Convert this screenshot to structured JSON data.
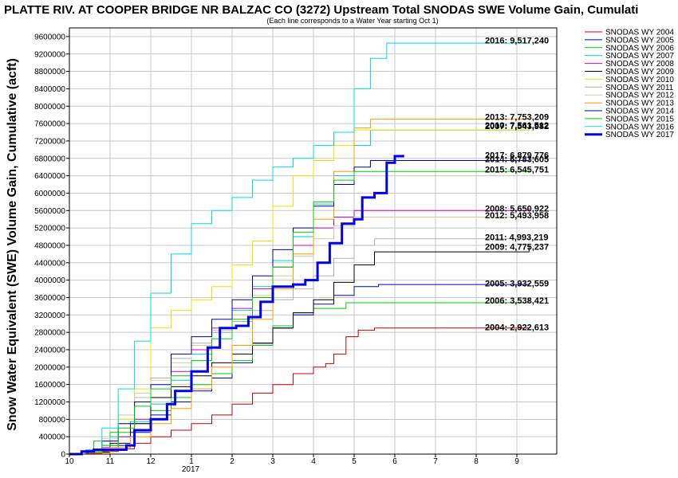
{
  "chart_data": {
    "type": "line",
    "title": "PLATTE RIV. AT COOPER BRIDGE NR BALZAC CO (3272) Upstream Total SNODAS SWE Volume Gain, Cumulati",
    "subtitle": "(Each line corresponds to a Water Year starting Oct 1)",
    "ylabel": "Snow Water Equivalent (SWE) Volume Gain, Cumulative (acft)",
    "xlabel": "",
    "x_tick_labels": [
      "10",
      "11",
      "12",
      "1",
      "2",
      "3",
      "4",
      "5",
      "6",
      "7",
      "8",
      "9"
    ],
    "x_year_label": "2017",
    "ylim": [
      0,
      9800000
    ],
    "y_ticks": [
      "0",
      "400000",
      "800000",
      "1200000",
      "1600000",
      "2000000",
      "2400000",
      "2800000",
      "3200000",
      "3600000",
      "4000000",
      "4400000",
      "4800000",
      "5200000",
      "5600000",
      "6000000",
      "6400000",
      "6800000",
      "7200000",
      "7600000",
      "8000000",
      "8400000",
      "8800000",
      "9200000",
      "9600000"
    ],
    "grid": true,
    "legend_position": "right",
    "series": [
      {
        "name": "SNODAS WY 2004",
        "color": "#cc0000",
        "width": 1,
        "end_label": "2004: 2,922,613",
        "points": [
          [
            0.0,
            0
          ],
          [
            0.4,
            20000
          ],
          [
            0.8,
            60000
          ],
          [
            1.2,
            120000
          ],
          [
            1.6,
            250000
          ],
          [
            2.0,
            400000
          ],
          [
            2.5,
            550000
          ],
          [
            3.0,
            700000
          ],
          [
            3.5,
            900000
          ],
          [
            4.0,
            1150000
          ],
          [
            4.5,
            1400000
          ],
          [
            5.0,
            1600000
          ],
          [
            5.5,
            1850000
          ],
          [
            6.0,
            2000000
          ],
          [
            6.3,
            2080000
          ],
          [
            6.5,
            2300000
          ],
          [
            6.8,
            2700000
          ],
          [
            7.1,
            2850000
          ],
          [
            7.5,
            2900000
          ],
          [
            11.3,
            2922613
          ]
        ]
      },
      {
        "name": "SNODAS WY 2005",
        "color": "#0000cc",
        "width": 1,
        "end_label": "2005: 3,932,559",
        "points": [
          [
            0.0,
            0
          ],
          [
            0.4,
            50000
          ],
          [
            1.0,
            200000
          ],
          [
            1.5,
            500000
          ],
          [
            2.0,
            900000
          ],
          [
            2.5,
            1200000
          ],
          [
            3.0,
            1450000
          ],
          [
            3.5,
            1750000
          ],
          [
            4.0,
            2100000
          ],
          [
            4.5,
            2550000
          ],
          [
            5.0,
            2900000
          ],
          [
            5.5,
            3200000
          ],
          [
            6.0,
            3450000
          ],
          [
            6.5,
            3650000
          ],
          [
            7.0,
            3850000
          ],
          [
            7.6,
            3900000
          ],
          [
            11.3,
            3932559
          ]
        ]
      },
      {
        "name": "SNODAS WY 2006",
        "color": "#00cc00",
        "width": 1,
        "end_label": "2006: 3,538,421",
        "points": [
          [
            0.0,
            0
          ],
          [
            0.3,
            50000
          ],
          [
            0.6,
            300000
          ],
          [
            1.0,
            500000
          ],
          [
            1.5,
            700000
          ],
          [
            2.0,
            1000000
          ],
          [
            2.5,
            1300000
          ],
          [
            3.0,
            1600000
          ],
          [
            3.5,
            1850000
          ],
          [
            4.0,
            2150000
          ],
          [
            4.5,
            2500000
          ],
          [
            5.0,
            2950000
          ],
          [
            5.5,
            3250000
          ],
          [
            6.0,
            3350000
          ],
          [
            6.8,
            3480000
          ],
          [
            11.3,
            3538421
          ]
        ]
      },
      {
        "name": "SNODAS WY 2007",
        "color": "#00cccc",
        "width": 1,
        "end_label": "2007: 7,543,982",
        "points": [
          [
            0.0,
            0
          ],
          [
            0.5,
            100000
          ],
          [
            1.0,
            400000
          ],
          [
            1.5,
            750000
          ],
          [
            2.0,
            1150000
          ],
          [
            2.5,
            1700000
          ],
          [
            3.0,
            2300000
          ],
          [
            3.5,
            2800000
          ],
          [
            4.0,
            3300000
          ],
          [
            4.5,
            3850000
          ],
          [
            5.0,
            4450000
          ],
          [
            5.5,
            5000000
          ],
          [
            6.0,
            5750000
          ],
          [
            6.5,
            6400000
          ],
          [
            7.0,
            7100000
          ],
          [
            7.4,
            7450000
          ],
          [
            11.3,
            7543982
          ]
        ]
      },
      {
        "name": "SNODAS WY 2008",
        "color": "#cc00cc",
        "width": 1,
        "end_label": "2008: 5,650,922",
        "points": [
          [
            0.0,
            0
          ],
          [
            0.4,
            30000
          ],
          [
            0.8,
            150000
          ],
          [
            1.2,
            400000
          ],
          [
            1.6,
            800000
          ],
          [
            2.0,
            1300000
          ],
          [
            2.5,
            1900000
          ],
          [
            3.0,
            2400000
          ],
          [
            3.5,
            2900000
          ],
          [
            4.0,
            3350000
          ],
          [
            4.5,
            3800000
          ],
          [
            5.0,
            4300000
          ],
          [
            5.5,
            4800000
          ],
          [
            6.0,
            5200000
          ],
          [
            6.5,
            5450000
          ],
          [
            7.0,
            5600000
          ],
          [
            11.3,
            5650922
          ]
        ]
      },
      {
        "name": "SNODAS WY 2009",
        "color": "#000000",
        "width": 1,
        "end_label": "2009: 4,775,237",
        "points": [
          [
            0.0,
            0
          ],
          [
            0.5,
            40000
          ],
          [
            1.0,
            250000
          ],
          [
            1.5,
            700000
          ],
          [
            2.0,
            1300000
          ],
          [
            2.5,
            1550000
          ],
          [
            3.0,
            1800000
          ],
          [
            3.5,
            2100000
          ],
          [
            4.0,
            2300000
          ],
          [
            4.5,
            2550000
          ],
          [
            5.0,
            2900000
          ],
          [
            5.5,
            3250000
          ],
          [
            6.0,
            3550000
          ],
          [
            6.5,
            3950000
          ],
          [
            7.0,
            4350000
          ],
          [
            7.5,
            4650000
          ],
          [
            11.3,
            4775237
          ]
        ]
      },
      {
        "name": "SNODAS WY 2010",
        "color": "#e8e800",
        "width": 1,
        "end_label": "2010: 7,561,512",
        "points": [
          [
            0.0,
            0
          ],
          [
            0.4,
            80000
          ],
          [
            0.8,
            300000
          ],
          [
            1.2,
            800000
          ],
          [
            1.6,
            1500000
          ],
          [
            2.0,
            2900000
          ],
          [
            2.5,
            3300000
          ],
          [
            3.0,
            3550000
          ],
          [
            3.5,
            3850000
          ],
          [
            4.0,
            4350000
          ],
          [
            4.5,
            4900000
          ],
          [
            5.0,
            5700000
          ],
          [
            5.5,
            6400000
          ],
          [
            6.0,
            6750000
          ],
          [
            6.5,
            7100000
          ],
          [
            7.0,
            7450000
          ],
          [
            11.3,
            7561512
          ]
        ]
      },
      {
        "name": "SNODAS WY 2011",
        "color": "#b0b0b0",
        "width": 1,
        "end_label": "2011: 4,993,219",
        "points": [
          [
            0.0,
            0
          ],
          [
            0.4,
            40000
          ],
          [
            0.8,
            200000
          ],
          [
            1.2,
            700000
          ],
          [
            1.6,
            1300000
          ],
          [
            2.0,
            1750000
          ],
          [
            2.5,
            2200000
          ],
          [
            3.0,
            2550000
          ],
          [
            3.5,
            2800000
          ],
          [
            4.0,
            3050000
          ],
          [
            4.5,
            3300000
          ],
          [
            5.0,
            3550000
          ],
          [
            5.5,
            3800000
          ],
          [
            6.0,
            4100000
          ],
          [
            6.5,
            4500000
          ],
          [
            7.0,
            4800000
          ],
          [
            7.5,
            4950000
          ],
          [
            11.3,
            4993219
          ]
        ]
      },
      {
        "name": "SNODAS WY 2012",
        "color": "#d8c8a0",
        "width": 1,
        "end_label": "2012: 5,493,958",
        "points": [
          [
            0.0,
            0
          ],
          [
            0.4,
            60000
          ],
          [
            0.8,
            350000
          ],
          [
            1.2,
            900000
          ],
          [
            1.6,
            1400000
          ],
          [
            2.0,
            1700000
          ],
          [
            2.5,
            2100000
          ],
          [
            3.0,
            2500000
          ],
          [
            3.5,
            2850000
          ],
          [
            4.0,
            3200000
          ],
          [
            4.5,
            3650000
          ],
          [
            5.0,
            4100000
          ],
          [
            5.5,
            4550000
          ],
          [
            6.0,
            4950000
          ],
          [
            6.5,
            5250000
          ],
          [
            7.0,
            5450000
          ],
          [
            11.3,
            5493958
          ]
        ]
      },
      {
        "name": "SNODAS WY 2013",
        "color": "#ff9900",
        "width": 1,
        "end_label": "2013: 7,753,209",
        "points": [
          [
            0.0,
            0
          ],
          [
            0.5,
            30000
          ],
          [
            1.0,
            150000
          ],
          [
            1.5,
            400000
          ],
          [
            2.0,
            700000
          ],
          [
            2.5,
            1050000
          ],
          [
            3.0,
            1500000
          ],
          [
            3.5,
            2000000
          ],
          [
            4.0,
            2500000
          ],
          [
            4.5,
            3100000
          ],
          [
            5.0,
            3800000
          ],
          [
            5.5,
            4600000
          ],
          [
            6.0,
            5400000
          ],
          [
            6.5,
            6500000
          ],
          [
            7.0,
            7500000
          ],
          [
            7.4,
            7700000
          ],
          [
            11.3,
            7753209
          ]
        ]
      },
      {
        "name": "SNODAS WY 2014",
        "color": "#0000aa",
        "width": 1,
        "end_label": "2014: 6,783,605",
        "points": [
          [
            0.0,
            0
          ],
          [
            0.4,
            80000
          ],
          [
            0.8,
            300000
          ],
          [
            1.2,
            700000
          ],
          [
            1.6,
            1200000
          ],
          [
            2.0,
            1600000
          ],
          [
            2.5,
            2300000
          ],
          [
            3.0,
            2700000
          ],
          [
            3.5,
            3100000
          ],
          [
            4.0,
            3550000
          ],
          [
            4.5,
            4100000
          ],
          [
            5.0,
            4700000
          ],
          [
            5.5,
            5200000
          ],
          [
            6.0,
            5700000
          ],
          [
            6.5,
            6200000
          ],
          [
            7.0,
            6600000
          ],
          [
            7.4,
            6750000
          ],
          [
            11.3,
            6783605
          ]
        ]
      },
      {
        "name": "SNODAS WY 2015",
        "color": "#00cc00",
        "width": 1,
        "end_label": "2015: 6,545,751",
        "points": [
          [
            0.0,
            0
          ],
          [
            0.4,
            50000
          ],
          [
            0.8,
            200000
          ],
          [
            1.2,
            600000
          ],
          [
            1.6,
            1100000
          ],
          [
            2.0,
            1500000
          ],
          [
            2.5,
            1800000
          ],
          [
            3.0,
            2150000
          ],
          [
            3.5,
            2650000
          ],
          [
            4.0,
            3100000
          ],
          [
            4.5,
            3600000
          ],
          [
            5.0,
            4300000
          ],
          [
            5.5,
            5100000
          ],
          [
            6.0,
            5800000
          ],
          [
            6.5,
            6300000
          ],
          [
            7.0,
            6500000
          ],
          [
            11.3,
            6545751
          ]
        ]
      },
      {
        "name": "SNODAS WY 2016",
        "color": "#00dddd",
        "width": 1,
        "end_label": "2016: 9,517,240",
        "points": [
          [
            0.0,
            0
          ],
          [
            0.4,
            100000
          ],
          [
            0.8,
            600000
          ],
          [
            1.2,
            1500000
          ],
          [
            1.6,
            2600000
          ],
          [
            2.0,
            3700000
          ],
          [
            2.5,
            4600000
          ],
          [
            3.0,
            5300000
          ],
          [
            3.5,
            5600000
          ],
          [
            4.0,
            5900000
          ],
          [
            4.5,
            6300000
          ],
          [
            5.0,
            6600000
          ],
          [
            5.5,
            6800000
          ],
          [
            6.0,
            7100000
          ],
          [
            6.5,
            7400000
          ],
          [
            7.0,
            8400000
          ],
          [
            7.4,
            9100000
          ],
          [
            7.8,
            9450000
          ],
          [
            11.3,
            9517240
          ]
        ]
      },
      {
        "name": "SNODAS WY 2017",
        "color": "#0000ee",
        "width": 3,
        "end_label": "2017: 6,879,776",
        "points": [
          [
            0.0,
            0
          ],
          [
            0.3,
            60000
          ],
          [
            0.6,
            100000
          ],
          [
            1.0,
            100000
          ],
          [
            1.4,
            200000
          ],
          [
            1.6,
            550000
          ],
          [
            2.0,
            800000
          ],
          [
            2.4,
            1150000
          ],
          [
            2.6,
            1450000
          ],
          [
            3.0,
            1900000
          ],
          [
            3.4,
            2450000
          ],
          [
            3.7,
            2900000
          ],
          [
            4.1,
            2950000
          ],
          [
            4.4,
            3150000
          ],
          [
            4.7,
            3500000
          ],
          [
            5.0,
            3850000
          ],
          [
            5.5,
            3900000
          ],
          [
            5.8,
            4000000
          ],
          [
            6.1,
            4400000
          ],
          [
            6.4,
            4850000
          ],
          [
            6.7,
            5300000
          ],
          [
            7.0,
            5400000
          ],
          [
            7.2,
            5900000
          ],
          [
            7.5,
            6000000
          ],
          [
            7.8,
            6700000
          ],
          [
            8.0,
            6850000
          ],
          [
            8.2,
            6879776
          ]
        ]
      }
    ]
  }
}
